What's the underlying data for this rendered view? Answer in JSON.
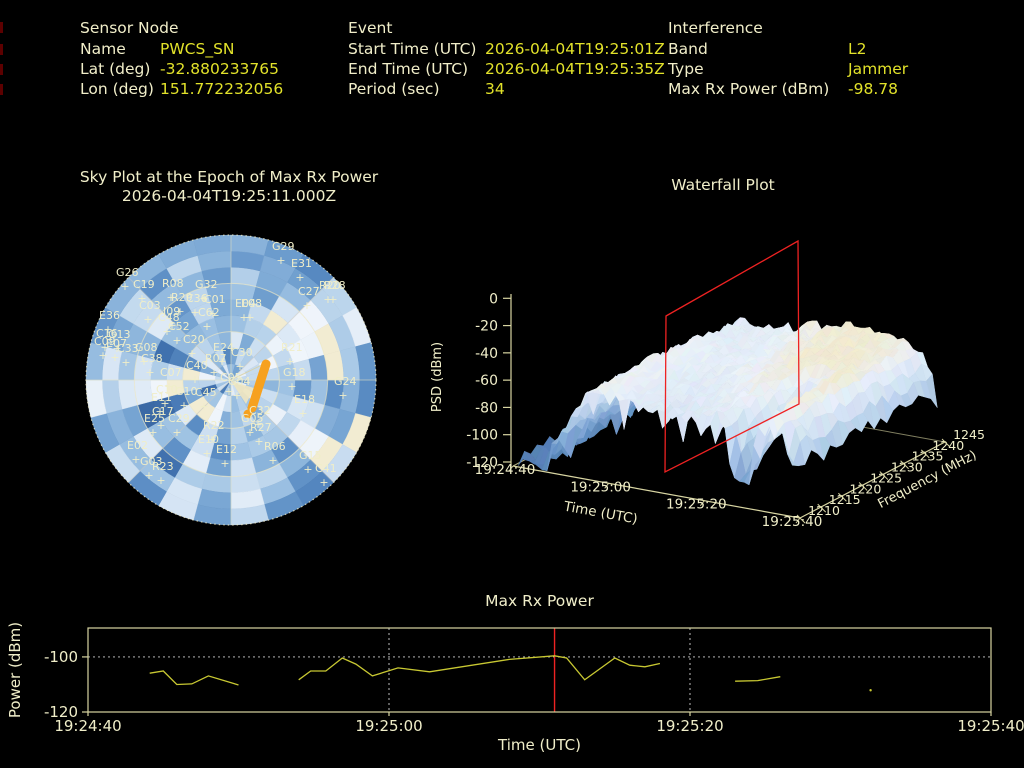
{
  "colors": {
    "background": "#000000",
    "label_text": "#f1eec9",
    "value_text": "#e2e22a",
    "satellite_green": "#21d321",
    "axis_khaki": "#d8d5a2",
    "series_olive": "#c8c832",
    "marker_red": "#ee2222",
    "beam_orange": "#f6a11f",
    "grid_dotted_white": "#e8e8e8"
  },
  "header": {
    "sensor_node": {
      "title": "Sensor Node",
      "rows": [
        {
          "label": "Name",
          "value": "PWCS_SN"
        },
        {
          "label": "Lat (deg)",
          "value": "-32.880233765"
        },
        {
          "label": "Lon (deg)",
          "value": "151.772232056"
        }
      ]
    },
    "event": {
      "title": "Event",
      "rows": [
        {
          "label": "Start Time (UTC)",
          "value": "2026-04-04T19:25:01Z"
        },
        {
          "label": "End Time (UTC)",
          "value": "2026-04-04T19:25:35Z"
        },
        {
          "label": "Period (sec)",
          "value": "34"
        }
      ]
    },
    "interference": {
      "title": "Interference",
      "rows": [
        {
          "label": "Band",
          "value": "L2"
        },
        {
          "label": "Type",
          "value": "Jammer"
        },
        {
          "label": "Max Rx Power (dBm)",
          "value": "-98.78"
        }
      ]
    }
  },
  "chart_data": [
    {
      "type": "heatmap",
      "projection": "polar",
      "title": "Sky Plot at the Epoch of Max Rx Power",
      "subtitle": "2026-04-04T19:25:11.000Z",
      "description": "Polar sky heatmap (azimuth x elevation) in blue/cream tones with GNSS satellite positions marked by green + and labels; orange beam marks interference bearing",
      "rings": 9,
      "sectors": 24,
      "satellites": [
        [
          "G29",
          272,
          246
        ],
        [
          "E31",
          291,
          263
        ],
        [
          "G26",
          116,
          272
        ],
        [
          "C19",
          133,
          284
        ],
        [
          "R08",
          162,
          283
        ],
        [
          "G32",
          195,
          284
        ],
        [
          "R20",
          319,
          285
        ],
        [
          "R28",
          324,
          285
        ],
        [
          "C27",
          298,
          291
        ],
        [
          "R29",
          171,
          297
        ],
        [
          "C36",
          186,
          298
        ],
        [
          "C01",
          204,
          299
        ],
        [
          "E04",
          235,
          303
        ],
        [
          "E08",
          241,
          303
        ],
        [
          "C03",
          139,
          305
        ],
        [
          "J09",
          163,
          311
        ],
        [
          "C62",
          198,
          312
        ],
        [
          "E36",
          99,
          315
        ],
        [
          "C48",
          158,
          317
        ],
        [
          "C52",
          168,
          326
        ],
        [
          "C16",
          96,
          333
        ],
        [
          "G13",
          108,
          334
        ],
        [
          "C20",
          183,
          339
        ],
        [
          "C09",
          94,
          341
        ],
        [
          "E07",
          106,
          343
        ],
        [
          "G08",
          135,
          347
        ],
        [
          "C33",
          117,
          348
        ],
        [
          "E24",
          213,
          347
        ],
        [
          "R21",
          281,
          347
        ],
        [
          "C30",
          231,
          352
        ],
        [
          "C38",
          141,
          358
        ],
        [
          "R07",
          205,
          358
        ],
        [
          "C40",
          186,
          365
        ],
        [
          "C07",
          160,
          372
        ],
        [
          "G18",
          283,
          372
        ],
        [
          "C05",
          220,
          377
        ],
        [
          "G04",
          228,
          381
        ],
        [
          "G24",
          334,
          381
        ],
        [
          "C10",
          156,
          389
        ],
        [
          "G10",
          175,
          391
        ],
        [
          "C45",
          195,
          392
        ],
        [
          "E11",
          151,
          397
        ],
        [
          "E18",
          294,
          399
        ],
        [
          "C32",
          249,
          410
        ],
        [
          "C17",
          152,
          411
        ],
        [
          "E25",
          144,
          418
        ],
        [
          "C29",
          168,
          418
        ],
        [
          "G05",
          241,
          418
        ],
        [
          "R22",
          203,
          425
        ],
        [
          "R27",
          250,
          427
        ],
        [
          "E10",
          198,
          439
        ],
        [
          "E02",
          127,
          445
        ],
        [
          "R06",
          264,
          446
        ],
        [
          "E12",
          216,
          449
        ],
        [
          "G15",
          299,
          455
        ],
        [
          "G03",
          140,
          461
        ],
        [
          "R23",
          152,
          466
        ],
        [
          "C41",
          315,
          468
        ]
      ],
      "beam": {
        "line": [
          266,
          364,
          252,
          408
        ],
        "dot": [
          248,
          414
        ],
        "arrow": [
          [
            231,
            381
          ],
          [
            254,
            388
          ],
          [
            246,
            404
          ]
        ]
      }
    },
    {
      "type": "surface",
      "title": "Waterfall Plot",
      "xlabel": "Time (UTC)",
      "ylabel": "PSD (dBm)",
      "zlabel": "Frequency (MHz)",
      "psd_ticks": [
        "0",
        "-20",
        "-40",
        "-60",
        "-80",
        "-100",
        "-120"
      ],
      "psd_range": [
        -120,
        0
      ],
      "time_ticks": [
        "19:24:40",
        "19:25:00",
        "19:25:20",
        "19:25:40"
      ],
      "freq_ticks": [
        "1210",
        "1215",
        "1220",
        "1225",
        "1230",
        "1235",
        "1240",
        "1245"
      ],
      "freq_range_mhz": [
        1210,
        1245
      ],
      "slice_marker_time": "19:25:11",
      "description": "3D PSD surface vs time and frequency, light blue with cream peaks near -30 dBm; red vertical plane slices the surface at the epoch of max Rx power"
    },
    {
      "type": "line",
      "title": "Max Rx Power",
      "xlabel": "Time (UTC)",
      "ylabel": "Power (dBm)",
      "x_ticks": [
        "19:24:40",
        "19:25:00",
        "19:25:20",
        "19:25:40"
      ],
      "y_ticks": [
        "-100",
        "-120"
      ],
      "ylim": [
        -120,
        -89.5
      ],
      "x_range_seconds": 60,
      "gridline_dbm": -100,
      "grid_vlines_s": [
        20,
        40
      ],
      "event_marker_s": 31,
      "segments": [
        [
          [
            4.1,
            -105.9
          ],
          [
            5.0,
            -105.1
          ],
          [
            5.9,
            -110.0
          ],
          [
            6.9,
            -109.8
          ],
          [
            8.0,
            -106.9
          ],
          [
            9.6,
            -109.5
          ],
          [
            10.0,
            -110.2
          ]
        ],
        [
          [
            14.0,
            -108.3
          ],
          [
            14.8,
            -105.1
          ],
          [
            15.8,
            -105.1
          ],
          [
            16.9,
            -100.4
          ],
          [
            17.8,
            -102.6
          ],
          [
            18.9,
            -106.9
          ],
          [
            20.6,
            -104.0
          ],
          [
            22.7,
            -105.4
          ],
          [
            28.0,
            -100.9
          ],
          [
            31.0,
            -99.6
          ],
          [
            31.8,
            -100.4
          ],
          [
            33.0,
            -108.3
          ],
          [
            35.0,
            -100.4
          ],
          [
            36.0,
            -103.0
          ],
          [
            37.0,
            -103.6
          ],
          [
            38.0,
            -102.4
          ]
        ],
        [
          [
            43.0,
            -108.8
          ],
          [
            44.5,
            -108.6
          ],
          [
            46.0,
            -107.2
          ]
        ]
      ],
      "isolated_point": [
        52.0,
        -112.1
      ]
    }
  ]
}
